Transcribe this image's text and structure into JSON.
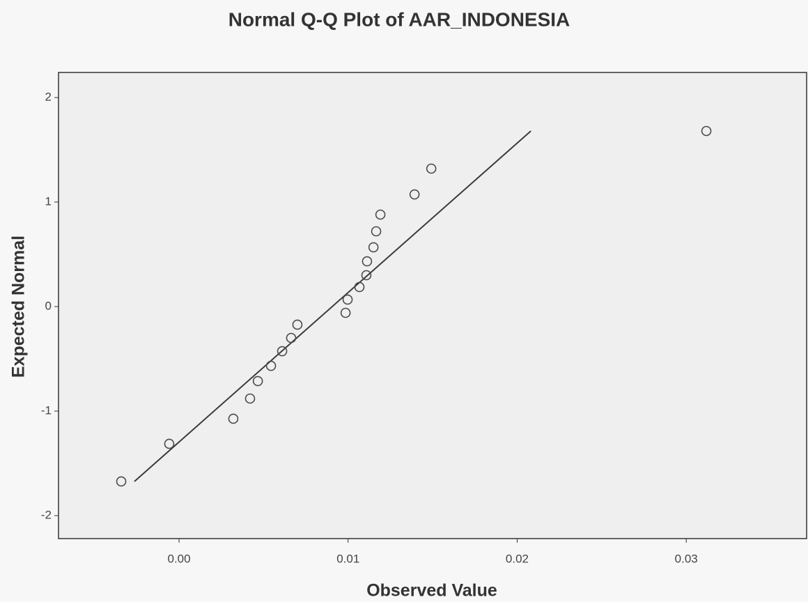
{
  "chart_data": {
    "type": "scatter",
    "title": "Normal Q-Q Plot of AAR_INDONESIA",
    "x_label": "Observed Value",
    "y_label": "Expected Normal",
    "x": [
      -0.00342,
      -0.00058,
      0.00321,
      0.0042,
      0.00466,
      0.00544,
      0.0061,
      0.00663,
      0.007,
      0.00985,
      0.00997,
      0.01067,
      0.01108,
      0.01112,
      0.0115,
      0.01166,
      0.01191,
      0.01393,
      0.01492,
      0.03119
    ],
    "values": [
      -1.673,
      -1.313,
      -1.073,
      -0.88,
      -0.713,
      -0.567,
      -0.427,
      -0.3,
      -0.173,
      -0.06,
      0.067,
      0.187,
      0.3,
      0.433,
      0.567,
      0.72,
      0.88,
      1.073,
      1.32,
      1.68
    ],
    "reference_line": {
      "x": [
        -0.00264,
        0.02081
      ],
      "values": [
        -1.673,
        1.68
      ],
      "color": "#3a3a3a"
    },
    "marker_color": "#4a4a4a",
    "xlim": [
      -0.00713,
      0.03712
    ],
    "ylim": [
      -2.22,
      2.24
    ],
    "xticks": [
      {
        "value": 0,
        "label": "0.00"
      },
      {
        "value": 0.01,
        "label": "0.01"
      },
      {
        "value": 0.02,
        "label": "0.02"
      },
      {
        "value": 0.03,
        "label": "0.03"
      }
    ],
    "yticks": [
      2,
      1,
      0,
      -1,
      -2
    ]
  }
}
